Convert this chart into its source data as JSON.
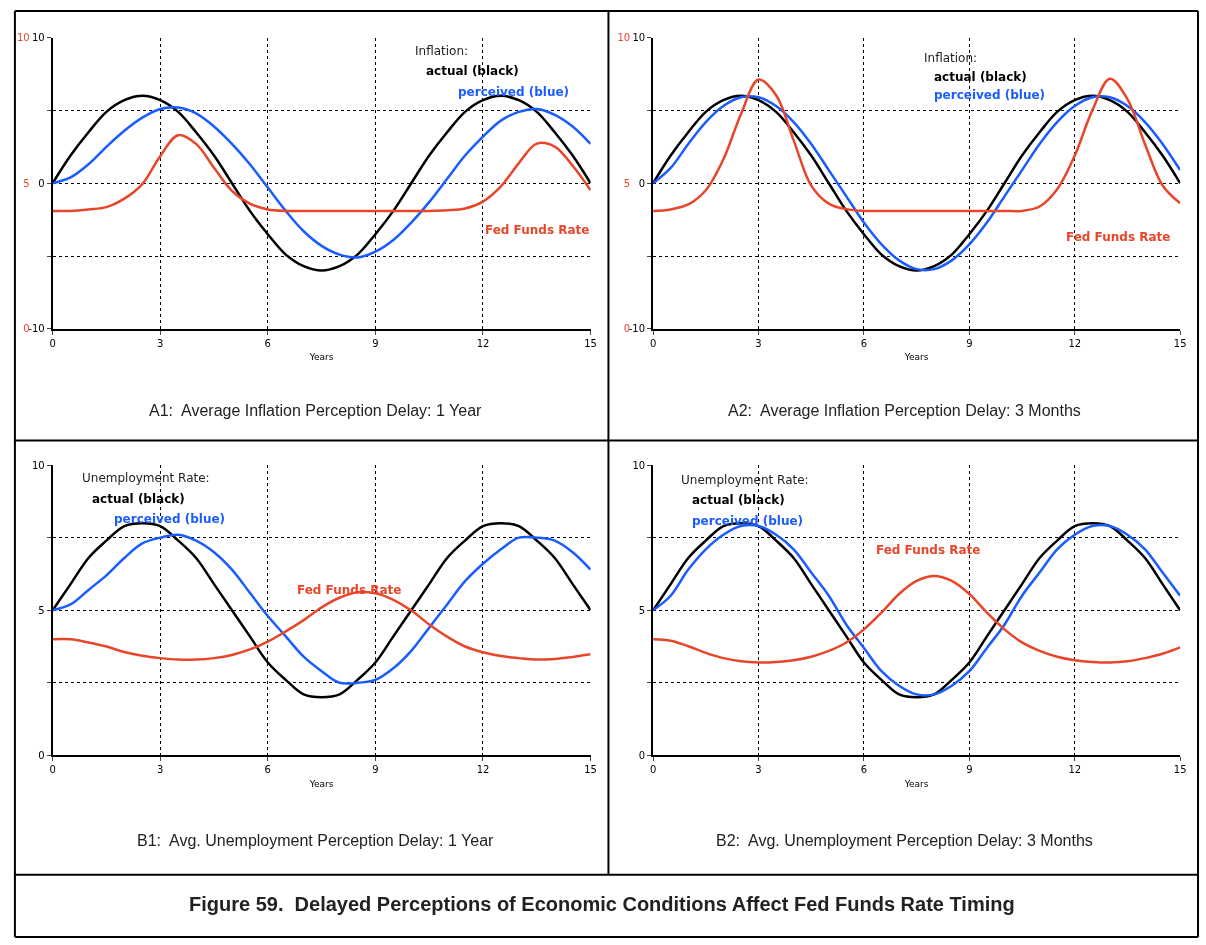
{
  "chart_data": [
    {
      "type": "line",
      "title": "A1:  Average Inflation Perception Delay: 1 Year",
      "xlabel": "Years",
      "legend_title": "Inflation:",
      "legend": false,
      "grid": true,
      "xlim": [
        0,
        15
      ],
      "xticks": [
        0,
        3,
        6,
        9,
        12,
        15
      ],
      "ylim": [
        -10,
        10
      ],
      "yticks": [
        -10,
        {
          "value": -5,
          "label": null
        },
        0,
        {
          "value": 5,
          "label": null
        },
        10
      ],
      "y2lim": [
        0,
        10
      ],
      "y2ticks": [
        0,
        5,
        10
      ],
      "x": [
        0,
        0.5,
        1,
        1.5,
        2,
        2.5,
        3,
        3.5,
        4,
        4.5,
        5,
        5.5,
        6,
        6.5,
        7,
        7.5,
        8,
        8.5,
        9,
        9.5,
        10,
        10.5,
        11,
        11.5,
        12,
        12.5,
        13,
        13.5,
        14,
        14.5,
        15
      ],
      "series": [
        {
          "name": "actual (black)",
          "color": "#000000",
          "values": [
            0,
            1.9,
            3.5,
            4.9,
            5.7,
            6,
            5.7,
            4.9,
            3.5,
            1.9,
            0,
            -1.9,
            -3.5,
            -4.9,
            -5.7,
            -6,
            -5.7,
            -4.9,
            -3.5,
            -1.9,
            0,
            1.9,
            3.5,
            4.9,
            5.7,
            6,
            5.7,
            4.9,
            3.5,
            1.9,
            0
          ]
        },
        {
          "name": "perceived (blue)",
          "color": "#1a5cff",
          "values": [
            0,
            0.4,
            1.3,
            2.5,
            3.6,
            4.5,
            5.1,
            5.2,
            4.8,
            3.9,
            2.7,
            1.3,
            -0.3,
            -1.9,
            -3.3,
            -4.3,
            -4.9,
            -5.1,
            -4.7,
            -3.9,
            -2.7,
            -1.3,
            0.3,
            1.9,
            3.2,
            4.3,
            4.9,
            5.1,
            4.7,
            3.9,
            2.7
          ]
        },
        {
          "name": "Fed Funds Rate",
          "color": "#e8462a",
          "axis": "y2",
          "values": [
            4.05,
            4.05,
            4.1,
            4.18,
            4.47,
            4.97,
            5.93,
            6.65,
            6.35,
            5.53,
            4.74,
            4.3,
            4.1,
            4.05,
            4.05,
            4.05,
            4.05,
            4.05,
            4.05,
            4.05,
            4.05,
            4.05,
            4.07,
            4.13,
            4.37,
            4.89,
            5.69,
            6.36,
            6.26,
            5.6,
            4.76
          ]
        }
      ]
    },
    {
      "type": "line",
      "title": "A2:  Average Inflation Perception Delay: 3 Months",
      "xlabel": "Years",
      "legend_title": "Inflation:",
      "legend": false,
      "grid": true,
      "xlim": [
        0,
        15
      ],
      "xticks": [
        0,
        3,
        6,
        9,
        12,
        15
      ],
      "ylim": [
        -10,
        10
      ],
      "yticks": [
        -10,
        {
          "value": -5,
          "label": null
        },
        0,
        {
          "value": 5,
          "label": null
        },
        10
      ],
      "y2lim": [
        0,
        10
      ],
      "y2ticks": [
        0,
        5,
        10
      ],
      "x": [
        0,
        0.5,
        1,
        1.5,
        2,
        2.5,
        3,
        3.5,
        4,
        4.5,
        5,
        5.5,
        6,
        6.5,
        7,
        7.5,
        8,
        8.5,
        9,
        9.5,
        10,
        10.5,
        11,
        11.5,
        12,
        12.5,
        13,
        13.5,
        14,
        14.5,
        15
      ],
      "series": [
        {
          "name": "actual (black)",
          "color": "#000000",
          "values": [
            0,
            1.9,
            3.5,
            4.9,
            5.7,
            6,
            5.7,
            4.9,
            3.5,
            1.9,
            0,
            -1.9,
            -3.5,
            -4.9,
            -5.7,
            -6,
            -5.7,
            -4.9,
            -3.5,
            -1.9,
            0,
            1.9,
            3.5,
            4.9,
            5.7,
            6,
            5.7,
            4.9,
            3.5,
            1.9,
            0
          ]
        },
        {
          "name": "perceived (blue)",
          "color": "#1a5cff",
          "values": [
            0,
            1.05,
            2.7,
            4.2,
            5.3,
            5.9,
            5.9,
            5.3,
            4.2,
            2.7,
            0.9,
            -0.9,
            -2.7,
            -4.2,
            -5.3,
            -5.9,
            -5.9,
            -5.3,
            -4.2,
            -2.7,
            -0.9,
            0.9,
            2.7,
            4.2,
            5.3,
            5.9,
            5.9,
            5.3,
            4.2,
            2.7,
            0.9
          ]
        },
        {
          "name": "Fed Funds Rate",
          "color": "#e8462a",
          "axis": "y2",
          "values": [
            4.05,
            4.1,
            4.27,
            4.76,
            5.82,
            7.37,
            8.56,
            8.02,
            6.47,
            4.92,
            4.3,
            4.11,
            4.05,
            4.05,
            4.05,
            4.05,
            4.05,
            4.05,
            4.05,
            4.05,
            4.05,
            4.05,
            4.2,
            4.79,
            5.95,
            7.5,
            8.59,
            7.89,
            6.34,
            4.92,
            4.31
          ]
        }
      ]
    },
    {
      "type": "line",
      "title": "B1:  Avg. Unemployment Perception Delay: 1 Year",
      "xlabel": "Years",
      "legend_title": "Unemployment Rate:",
      "legend": false,
      "grid": true,
      "xlim": [
        0,
        15
      ],
      "xticks": [
        0,
        3,
        6,
        9,
        12,
        15
      ],
      "ylim": [
        0,
        10
      ],
      "yticks": [
        0,
        {
          "value": 2.5,
          "label": null
        },
        5,
        {
          "value": 7.5,
          "label": null
        },
        10
      ],
      "x": [
        0,
        0.5,
        1,
        1.5,
        2,
        2.5,
        3,
        3.5,
        4,
        4.5,
        5,
        5.5,
        6,
        6.5,
        7,
        7.5,
        8,
        8.5,
        9,
        9.5,
        10,
        10.5,
        11,
        11.5,
        12,
        12.5,
        13,
        13.5,
        14,
        14.5,
        15
      ],
      "series": [
        {
          "name": "actual (black)",
          "color": "#000000",
          "values": [
            5,
            5.9,
            6.8,
            7.4,
            7.9,
            8,
            7.9,
            7.4,
            6.8,
            5.9,
            5,
            4.1,
            3.2,
            2.6,
            2.1,
            2,
            2.1,
            2.6,
            3.2,
            4.1,
            5,
            5.9,
            6.8,
            7.4,
            7.9,
            8,
            7.9,
            7.4,
            6.8,
            5.9,
            5
          ]
        },
        {
          "name": "perceived (blue)",
          "color": "#1a5cff",
          "values": [
            5,
            5.2,
            5.7,
            6.2,
            6.8,
            7.3,
            7.5,
            7.6,
            7.4,
            7.0,
            6.4,
            5.6,
            4.8,
            4.1,
            3.4,
            2.9,
            2.5,
            2.5,
            2.6,
            3.0,
            3.6,
            4.4,
            5.2,
            6.0,
            6.6,
            7.1,
            7.5,
            7.5,
            7.4,
            7.0,
            6.4
          ]
        },
        {
          "name": "Fed Funds Rate",
          "color": "#e8462a",
          "values": [
            4.0,
            4.0,
            3.89,
            3.75,
            3.56,
            3.43,
            3.35,
            3.3,
            3.3,
            3.35,
            3.46,
            3.65,
            3.92,
            4.27,
            4.66,
            5.1,
            5.43,
            5.62,
            5.58,
            5.36,
            4.99,
            4.51,
            4.09,
            3.75,
            3.55,
            3.42,
            3.35,
            3.3,
            3.32,
            3.39,
            3.48
          ]
        }
      ]
    },
    {
      "type": "line",
      "title": "B2:  Avg. Unemployment Perception Delay: 3 Months",
      "xlabel": "Years",
      "legend_title": "Unemployment Rate:",
      "legend": false,
      "grid": true,
      "xlim": [
        0,
        15
      ],
      "xticks": [
        0,
        3,
        6,
        9,
        12,
        15
      ],
      "ylim": [
        0,
        10
      ],
      "yticks": [
        0,
        {
          "value": 2.5,
          "label": null
        },
        5,
        {
          "value": 7.5,
          "label": null
        },
        10
      ],
      "annotations": [
        "Figure 59.  Delayed Perceptions of Economic Conditions Affect Fed Funds Rate Timing"
      ],
      "x": [
        0,
        0.5,
        1,
        1.5,
        2,
        2.5,
        3,
        3.5,
        4,
        4.5,
        5,
        5.5,
        6,
        6.5,
        7,
        7.5,
        8,
        8.5,
        9,
        9.5,
        10,
        10.5,
        11,
        11.5,
        12,
        12.5,
        13,
        13.5,
        14,
        14.5,
        15
      ],
      "series": [
        {
          "name": "actual (black)",
          "color": "#000000",
          "values": [
            5,
            5.9,
            6.8,
            7.4,
            7.9,
            8,
            7.9,
            7.4,
            6.8,
            5.9,
            5,
            4.1,
            3.2,
            2.6,
            2.1,
            2,
            2.1,
            2.6,
            3.2,
            4.1,
            5,
            5.9,
            6.8,
            7.4,
            7.9,
            8,
            7.9,
            7.4,
            6.8,
            5.9,
            5
          ]
        },
        {
          "name": "perceived (blue)",
          "color": "#1a5cff",
          "values": [
            5,
            5.5,
            6.4,
            7.1,
            7.6,
            7.9,
            7.9,
            7.6,
            7.1,
            6.3,
            5.5,
            4.5,
            3.7,
            2.9,
            2.4,
            2.1,
            2.1,
            2.4,
            2.9,
            3.7,
            4.5,
            5.5,
            6.3,
            7.1,
            7.6,
            7.9,
            7.9,
            7.6,
            7.1,
            6.3,
            5.5
          ]
        },
        {
          "name": "Fed Funds Rate",
          "color": "#e8462a",
          "values": [
            4.0,
            3.95,
            3.76,
            3.53,
            3.35,
            3.24,
            3.2,
            3.22,
            3.28,
            3.4,
            3.6,
            3.89,
            4.34,
            4.92,
            5.56,
            6.01,
            6.18,
            6.01,
            5.56,
            4.92,
            4.34,
            3.89,
            3.6,
            3.4,
            3.28,
            3.22,
            3.2,
            3.24,
            3.35,
            3.5,
            3.72
          ]
        }
      ]
    }
  ]
}
